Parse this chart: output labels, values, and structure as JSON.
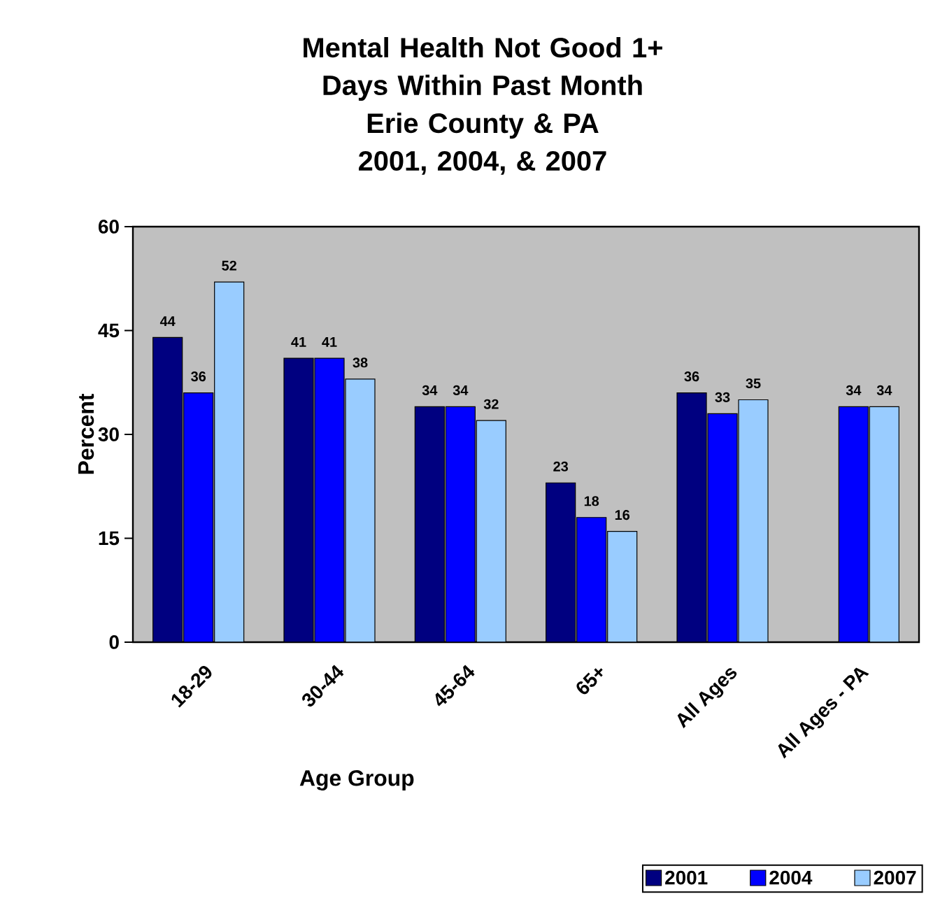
{
  "chart_data": {
    "type": "bar",
    "title": "Mental Health Not Good 1+ Days Within Past Month",
    "subtitle": "Erie County & PA 2001, 2004, & 2007",
    "xlabel": "Age Group",
    "ylabel": "Percent",
    "categories": [
      "18-29",
      "30-44",
      "45-64",
      "65+",
      "All Ages",
      "All Ages - PA"
    ],
    "series": [
      {
        "name": "2001",
        "color": "#000080",
        "values": [
          44,
          41,
          34,
          23,
          36,
          null
        ]
      },
      {
        "name": "2004",
        "color": "#0000ff",
        "values": [
          36,
          41,
          34,
          18,
          33,
          34
        ]
      },
      {
        "name": "2007",
        "color": "#99ccff",
        "values": [
          52,
          38,
          32,
          16,
          35,
          34
        ]
      }
    ],
    "ylim": [
      0,
      60
    ],
    "yticks": [
      0,
      15,
      30,
      45,
      60
    ],
    "grid": false,
    "legend": "bottom right",
    "data_labels": true
  }
}
